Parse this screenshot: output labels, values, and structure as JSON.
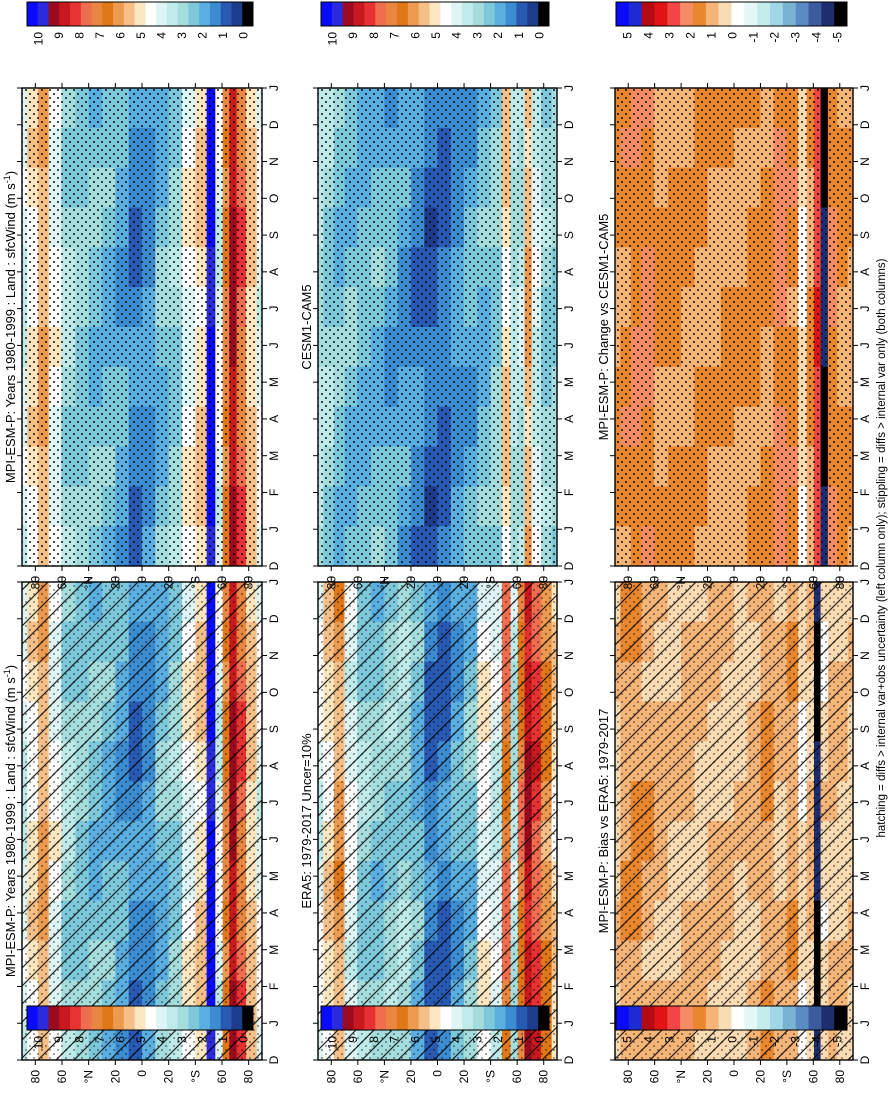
{
  "footer_note": "hatching = diffs > internal var+obs uncertainty (left column only); stippling = diffs > internal var only (both columns)",
  "palettes": {
    "absolute": [
      "#0a0aff",
      "#2b2bdc",
      "#9b0a1e",
      "#c8191e",
      "#e63232",
      "#f06e50",
      "#e98640",
      "#e07818",
      "#ec9a50",
      "#f4c088",
      "#fbe6c0",
      "#ffffff",
      "#dff5f5",
      "#bfeaea",
      "#a5dcdc",
      "#7ec8dc",
      "#5aaee0",
      "#3c8cd2",
      "#285ab4",
      "#1e3c8c",
      "#000000"
    ],
    "difference": [
      "#0a0aff",
      "#1e2ad2",
      "#b40a14",
      "#e01414",
      "#f04646",
      "#f58c64",
      "#e9872f",
      "#f5b478",
      "#fadcb4",
      "#ffffff",
      "#e5f8f8",
      "#c5ebeb",
      "#a0d7e6",
      "#78b4d2",
      "#5a8cc3",
      "#3c5aa0",
      "#1e2d6e",
      "#000000"
    ]
  },
  "chart_data": [
    {
      "panel": "bias-model",
      "type": "heatmap",
      "title": "MPI-ESM-P: Years 1980-1999 : Land : sfcWind (m s",
      "title_superscript": "-1",
      "title_suffix": ")",
      "x_tick_labels": [
        "D",
        "J",
        "F",
        "M",
        "A",
        "M",
        "J",
        "J",
        "A",
        "S",
        "O",
        "N",
        "D",
        "J"
      ],
      "y_tick_labels": [
        "80",
        "60",
        "°N",
        "20",
        "0",
        "20",
        "°S",
        "60",
        "80"
      ],
      "colorbar_labels": [
        "10",
        "9",
        "8",
        "7",
        "6",
        "5",
        "4",
        "3",
        "2",
        "1",
        "0"
      ],
      "palette": "absolute",
      "latitude_profile": [
        {
          "lat": 90,
          "value": 4.2
        },
        {
          "lat": 82,
          "value": 5.3
        },
        {
          "lat": 74,
          "value": 6.3
        },
        {
          "lat": 66,
          "value": 4.8
        },
        {
          "lat": 55,
          "value": 3.4
        },
        {
          "lat": 45,
          "value": 3.0
        },
        {
          "lat": 35,
          "value": 2.8
        },
        {
          "lat": 25,
          "value": 2.6
        },
        {
          "lat": 15,
          "value": 2.2
        },
        {
          "lat": 5,
          "value": 1.7
        },
        {
          "lat": -5,
          "value": 1.9
        },
        {
          "lat": -15,
          "value": 2.7
        },
        {
          "lat": -25,
          "value": 3.1
        },
        {
          "lat": -35,
          "value": 4.9
        },
        {
          "lat": -45,
          "value": 5.7
        },
        {
          "lat": -52,
          "value": 11.0
        },
        {
          "lat": -58,
          "value": 4.5
        },
        {
          "lat": -63,
          "value": 7.3
        },
        {
          "lat": -68,
          "value": 9.6
        },
        {
          "lat": -74,
          "value": 8.2
        },
        {
          "lat": -82,
          "value": 5.8
        },
        {
          "lat": -90,
          "value": 4.5
        }
      ],
      "overlays": [
        "hatching",
        "stippling"
      ]
    },
    {
      "panel": "bias-obs",
      "type": "heatmap",
      "title": "ERA5: 1979-2017 Uncer=10%",
      "x_tick_labels": [
        "D",
        "J",
        "F",
        "M",
        "A",
        "M",
        "J",
        "J",
        "A",
        "S",
        "O",
        "N",
        "D",
        "J"
      ],
      "y_tick_labels": [
        "80",
        "60",
        "°N",
        "20",
        "0",
        "20",
        "°S",
        "60",
        "80"
      ],
      "colorbar_labels": [
        "10",
        "9",
        "8",
        "7",
        "6",
        "5",
        "4",
        "3",
        "2",
        "1",
        "0"
      ],
      "palette": "absolute",
      "latitude_profile": [
        {
          "lat": 90,
          "value": 4.5
        },
        {
          "lat": 82,
          "value": 5.5
        },
        {
          "lat": 74,
          "value": 6.4
        },
        {
          "lat": 66,
          "value": 4.6
        },
        {
          "lat": 55,
          "value": 3.2
        },
        {
          "lat": 45,
          "value": 2.9
        },
        {
          "lat": 35,
          "value": 3.1
        },
        {
          "lat": 25,
          "value": 3.3
        },
        {
          "lat": 15,
          "value": 2.6
        },
        {
          "lat": 5,
          "value": 1.5
        },
        {
          "lat": -5,
          "value": 1.6
        },
        {
          "lat": -15,
          "value": 2.3
        },
        {
          "lat": -25,
          "value": 2.8
        },
        {
          "lat": -35,
          "value": 5.0
        },
        {
          "lat": -45,
          "value": 4.2
        },
        {
          "lat": -52,
          "value": 7.8
        },
        {
          "lat": -58,
          "value": 3.7
        },
        {
          "lat": -63,
          "value": 7.6
        },
        {
          "lat": -68,
          "value": 9.5
        },
        {
          "lat": -74,
          "value": 8.6
        },
        {
          "lat": -82,
          "value": 6.8
        },
        {
          "lat": -90,
          "value": 5.5
        }
      ],
      "overlays": [
        "hatching",
        "stippling"
      ]
    },
    {
      "panel": "bias-diff",
      "type": "heatmap",
      "title": "MPI-ESM-P: Bias vs ERA5: 1979-2017",
      "x_tick_labels": [
        "D",
        "J",
        "F",
        "M",
        "A",
        "M",
        "J",
        "J",
        "A",
        "S",
        "O",
        "N",
        "D",
        "J"
      ],
      "y_tick_labels": [
        "80",
        "60",
        "°N",
        "20",
        "0",
        "20",
        "°S",
        "60",
        "80"
      ],
      "colorbar_labels": [
        "5",
        "4",
        "3",
        "2",
        "1",
        "0",
        "-1",
        "-2",
        "-3",
        "-4",
        "-5"
      ],
      "palette": "difference",
      "latitude_profile": [
        {
          "lat": 90,
          "value": 0.4
        },
        {
          "lat": 82,
          "value": 1.1
        },
        {
          "lat": 74,
          "value": 1.4
        },
        {
          "lat": 66,
          "value": 1.0
        },
        {
          "lat": 55,
          "value": 0.9
        },
        {
          "lat": 45,
          "value": 0.6
        },
        {
          "lat": 35,
          "value": 0.9
        },
        {
          "lat": 25,
          "value": 0.5
        },
        {
          "lat": 15,
          "value": 0.8
        },
        {
          "lat": 5,
          "value": 0.6
        },
        {
          "lat": -5,
          "value": 0.4
        },
        {
          "lat": -15,
          "value": 0.9
        },
        {
          "lat": -25,
          "value": 1.2
        },
        {
          "lat": -35,
          "value": 0.8
        },
        {
          "lat": -45,
          "value": 1.1
        },
        {
          "lat": -52,
          "value": 0.0
        },
        {
          "lat": -58,
          "value": 0.7
        },
        {
          "lat": -63,
          "value": -5.0
        },
        {
          "lat": -68,
          "value": 0.3
        },
        {
          "lat": -74,
          "value": 0.8
        },
        {
          "lat": -82,
          "value": 0.5
        },
        {
          "lat": -90,
          "value": 0.4
        }
      ],
      "overlays": [
        "hatching",
        "stippling"
      ]
    },
    {
      "panel": "change-model",
      "type": "heatmap",
      "title": "MPI-ESM-P: Years 1980-1999 : Land : sfcWind (m s",
      "title_superscript": "-1",
      "title_suffix": ")",
      "x_tick_labels": [
        "D",
        "J",
        "F",
        "M",
        "A",
        "M",
        "J",
        "J",
        "A",
        "S",
        "O",
        "N",
        "D",
        "J"
      ],
      "y_tick_labels": [
        "80",
        "60",
        "°N",
        "20",
        "0",
        "20",
        "°S",
        "60",
        "80"
      ],
      "colorbar_labels": [
        "10",
        "9",
        "8",
        "7",
        "6",
        "5",
        "4",
        "3",
        "2",
        "1",
        "0"
      ],
      "palette": "absolute",
      "latitude_profile": [
        {
          "lat": 90,
          "value": 4.2
        },
        {
          "lat": 82,
          "value": 5.3
        },
        {
          "lat": 74,
          "value": 6.3
        },
        {
          "lat": 66,
          "value": 4.8
        },
        {
          "lat": 55,
          "value": 3.4
        },
        {
          "lat": 45,
          "value": 3.0
        },
        {
          "lat": 35,
          "value": 2.8
        },
        {
          "lat": 25,
          "value": 2.6
        },
        {
          "lat": 15,
          "value": 2.2
        },
        {
          "lat": 5,
          "value": 1.7
        },
        {
          "lat": -5,
          "value": 1.9
        },
        {
          "lat": -15,
          "value": 2.7
        },
        {
          "lat": -25,
          "value": 3.1
        },
        {
          "lat": -35,
          "value": 4.9
        },
        {
          "lat": -45,
          "value": 5.7
        },
        {
          "lat": -52,
          "value": 11.0
        },
        {
          "lat": -58,
          "value": 4.5
        },
        {
          "lat": -63,
          "value": 7.3
        },
        {
          "lat": -68,
          "value": 9.6
        },
        {
          "lat": -74,
          "value": 8.2
        },
        {
          "lat": -82,
          "value": 5.8
        },
        {
          "lat": -90,
          "value": 4.5
        }
      ],
      "overlays": [
        "stippling"
      ]
    },
    {
      "panel": "change-ref",
      "type": "heatmap",
      "title": "CESM1-CAM5",
      "x_tick_labels": [
        "D",
        "J",
        "F",
        "M",
        "A",
        "M",
        "J",
        "J",
        "A",
        "S",
        "O",
        "N",
        "D",
        "J"
      ],
      "y_tick_labels": [
        "80",
        "60",
        "°N",
        "20",
        "0",
        "20",
        "°S",
        "60",
        "80"
      ],
      "colorbar_labels": [
        "10",
        "9",
        "8",
        "7",
        "6",
        "5",
        "4",
        "3",
        "2",
        "1",
        "0"
      ],
      "palette": "absolute",
      "latitude_profile": [
        {
          "lat": 90,
          "value": 3.6
        },
        {
          "lat": 82,
          "value": 3.2
        },
        {
          "lat": 74,
          "value": 2.8
        },
        {
          "lat": 66,
          "value": 2.7
        },
        {
          "lat": 55,
          "value": 2.5
        },
        {
          "lat": 45,
          "value": 2.6
        },
        {
          "lat": 35,
          "value": 2.3
        },
        {
          "lat": 25,
          "value": 2.0
        },
        {
          "lat": 15,
          "value": 1.7
        },
        {
          "lat": 5,
          "value": 1.3
        },
        {
          "lat": -5,
          "value": 1.4
        },
        {
          "lat": -15,
          "value": 1.9
        },
        {
          "lat": -25,
          "value": 2.3
        },
        {
          "lat": -35,
          "value": 2.6
        },
        {
          "lat": -45,
          "value": 3.0
        },
        {
          "lat": -52,
          "value": 5.6
        },
        {
          "lat": -58,
          "value": 3.6
        },
        {
          "lat": -63,
          "value": 3.8
        },
        {
          "lat": -68,
          "value": 6.2
        },
        {
          "lat": -74,
          "value": 4.2
        },
        {
          "lat": -82,
          "value": 3.1
        },
        {
          "lat": -90,
          "value": 3.0
        }
      ],
      "overlays": [
        "stippling"
      ]
    },
    {
      "panel": "change-diff",
      "type": "heatmap",
      "title": "MPI-ESM-P: Change vs CESM1-CAM5",
      "x_tick_labels": [
        "D",
        "J",
        "F",
        "M",
        "A",
        "M",
        "J",
        "J",
        "A",
        "S",
        "O",
        "N",
        "D",
        "J"
      ],
      "y_tick_labels": [
        "80",
        "60",
        "°N",
        "20",
        "0",
        "20",
        "°S",
        "60",
        "80"
      ],
      "colorbar_labels": [
        "5",
        "4",
        "3",
        "2",
        "1",
        "0",
        "-1",
        "-2",
        "-3",
        "-4",
        "-5"
      ],
      "palette": "difference",
      "latitude_profile": [
        {
          "lat": 90,
          "value": 1.3
        },
        {
          "lat": 82,
          "value": 1.6
        },
        {
          "lat": 74,
          "value": 1.8
        },
        {
          "lat": 66,
          "value": 2.1
        },
        {
          "lat": 55,
          "value": 1.4
        },
        {
          "lat": 45,
          "value": 1.5
        },
        {
          "lat": 35,
          "value": 1.2
        },
        {
          "lat": 25,
          "value": 1.4
        },
        {
          "lat": 15,
          "value": 1.1
        },
        {
          "lat": 5,
          "value": 1.3
        },
        {
          "lat": -5,
          "value": 1.2
        },
        {
          "lat": -15,
          "value": 1.5
        },
        {
          "lat": -25,
          "value": 1.3
        },
        {
          "lat": -35,
          "value": 2.2
        },
        {
          "lat": -45,
          "value": 1.6
        },
        {
          "lat": -52,
          "value": 0.0
        },
        {
          "lat": -58,
          "value": 1.4
        },
        {
          "lat": -63,
          "value": 3.0
        },
        {
          "lat": -68,
          "value": -5.0
        },
        {
          "lat": -74,
          "value": 1.8
        },
        {
          "lat": -82,
          "value": 1.4
        },
        {
          "lat": -90,
          "value": 1.2
        }
      ],
      "overlays": [
        "stippling"
      ]
    }
  ]
}
